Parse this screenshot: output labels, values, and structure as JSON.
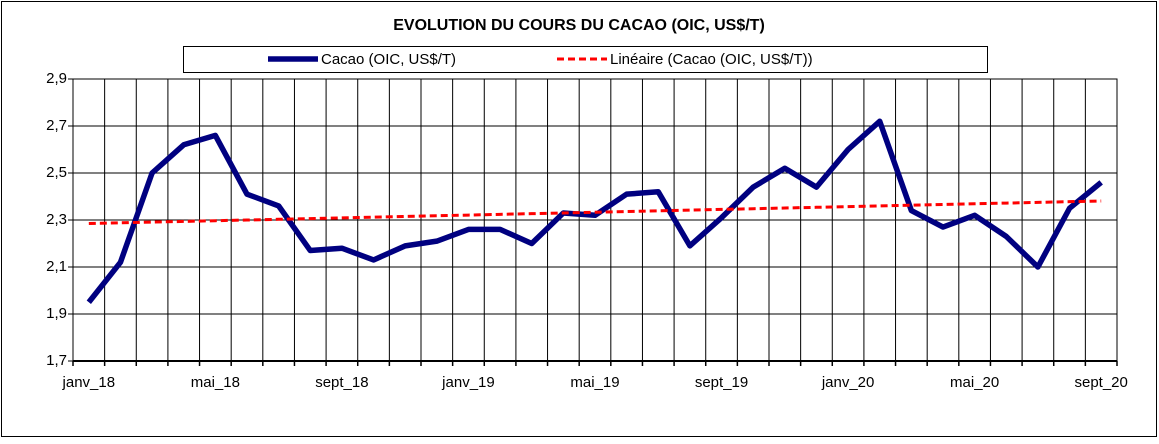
{
  "chart_data": {
    "type": "line",
    "title": "EVOLUTION DU COURS DU CACAO (OIC, US$/T)",
    "categories": [
      "janv_18",
      null,
      null,
      null,
      "mai_18",
      null,
      null,
      null,
      "sept_18",
      null,
      null,
      null,
      "janv_19",
      null,
      null,
      null,
      "mai_19",
      null,
      null,
      null,
      "sept_19",
      null,
      null,
      null,
      "janv_20",
      null,
      null,
      null,
      "mai_20",
      null,
      null,
      null,
      "sept_20"
    ],
    "series": [
      {
        "name": "Cacao (OIC, US$/T)",
        "color": "#000080",
        "dash": false,
        "values": [
          1.95,
          2.12,
          2.5,
          2.62,
          2.66,
          2.41,
          2.36,
          2.17,
          2.18,
          2.13,
          2.19,
          2.21,
          2.26,
          2.26,
          2.2,
          2.33,
          2.32,
          2.41,
          2.42,
          2.19,
          2.31,
          2.44,
          2.52,
          2.44,
          2.6,
          2.72,
          2.34,
          2.27,
          2.32,
          2.23,
          2.1,
          2.35,
          2.46
        ]
      },
      {
        "name": "Linéaire (Cacao (OIC, US$/T))",
        "color": "#ff0000",
        "dash": true,
        "values": [
          2.285,
          2.288,
          2.291,
          2.294,
          2.297,
          2.3,
          2.303,
          2.306,
          2.309,
          2.312,
          2.315,
          2.318,
          2.321,
          2.324,
          2.327,
          2.33,
          2.333,
          2.336,
          2.339,
          2.342,
          2.345,
          2.348,
          2.351,
          2.354,
          2.357,
          2.36,
          2.363,
          2.366,
          2.369,
          2.372,
          2.375,
          2.378,
          2.381
        ]
      }
    ],
    "ylim": [
      1.7,
      2.9
    ],
    "yticks": [
      {
        "value": 1.7,
        "label": "1,7"
      },
      {
        "value": 1.9,
        "label": "1,9"
      },
      {
        "value": 2.1,
        "label": "2,1"
      },
      {
        "value": 2.3,
        "label": "2,3"
      },
      {
        "value": 2.5,
        "label": "2,5"
      },
      {
        "value": 2.7,
        "label": "2,7"
      },
      {
        "value": 2.9,
        "label": "2,9"
      }
    ],
    "grid": true
  }
}
